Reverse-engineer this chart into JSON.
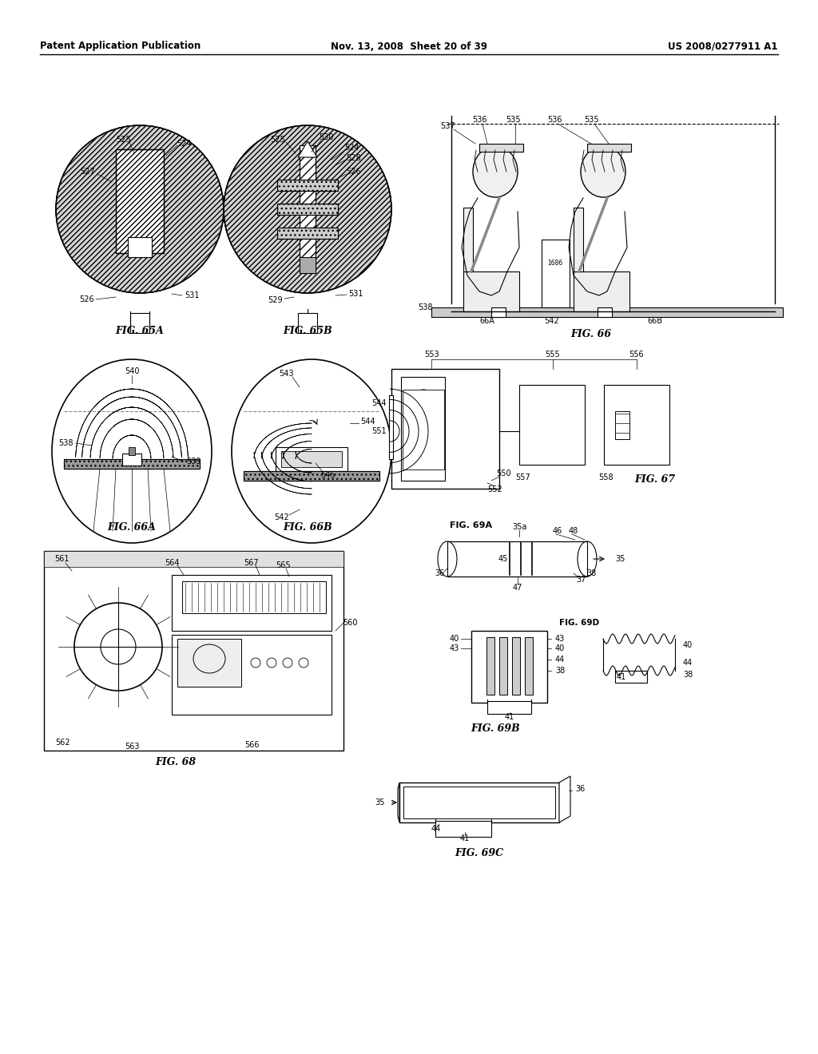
{
  "page_header": {
    "left": "Patent Application Publication",
    "center": "Nov. 13, 2008  Sheet 20 of 39",
    "right": "US 2008/0277911 A1"
  },
  "background_color": "#ffffff",
  "fig_labels": {
    "fig65A": "FIG. 65A",
    "fig65B": "FIG. 65B",
    "fig66": "FIG. 66",
    "fig66A": "FIG. 66A",
    "fig66B": "FIG. 66B",
    "fig67": "FIG. 67",
    "fig68": "FIG. 68",
    "fig69A": "FIG. 69A",
    "fig69B": "FIG. 69B",
    "fig69C": "FIG. 69C",
    "fig69D": "FIG. 69D"
  }
}
